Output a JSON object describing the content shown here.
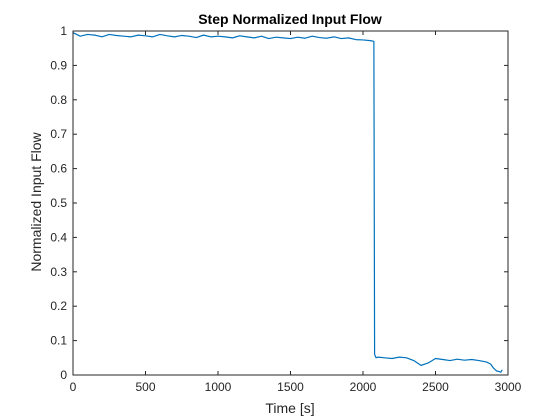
{
  "chart_data": {
    "type": "line",
    "title": "Step Normalized Input Flow",
    "xlabel": "Time [s]",
    "ylabel": "Normalized Input Flow",
    "xlim": [
      0,
      3000
    ],
    "ylim": [
      0,
      1
    ],
    "xticks": [
      0,
      500,
      1000,
      1500,
      2000,
      2500,
      3000
    ],
    "yticks": [
      0,
      0.1,
      0.2,
      0.3,
      0.4,
      0.5,
      0.6,
      0.7,
      0.8,
      0.9,
      1
    ],
    "xtick_labels": [
      "0",
      "500",
      "1000",
      "1500",
      "2000",
      "2500",
      "3000"
    ],
    "ytick_labels": [
      "0",
      "0.1",
      "0.2",
      "0.3",
      "0.4",
      "0.5",
      "0.6",
      "0.7",
      "0.8",
      "0.9",
      "1"
    ],
    "grid": false,
    "box": true,
    "series": [
      {
        "color": "#0072BD",
        "x": [
          0,
          50,
          100,
          150,
          200,
          250,
          300,
          350,
          400,
          450,
          500,
          550,
          600,
          650,
          700,
          750,
          800,
          850,
          900,
          950,
          1000,
          1050,
          1100,
          1150,
          1200,
          1250,
          1300,
          1350,
          1400,
          1450,
          1500,
          1550,
          1600,
          1650,
          1700,
          1750,
          1800,
          1850,
          1900,
          1950,
          2000,
          2050,
          2075,
          2080,
          2090,
          2100,
          2150,
          2200,
          2250,
          2300,
          2350,
          2400,
          2450,
          2500,
          2550,
          2600,
          2650,
          2700,
          2750,
          2800,
          2850,
          2880,
          2900,
          2920,
          2940,
          2950,
          2960
        ],
        "y": [
          0.995,
          0.985,
          0.99,
          0.988,
          0.983,
          0.99,
          0.987,
          0.985,
          0.983,
          0.988,
          0.986,
          0.983,
          0.99,
          0.986,
          0.983,
          0.987,
          0.985,
          0.981,
          0.988,
          0.983,
          0.985,
          0.983,
          0.98,
          0.986,
          0.983,
          0.98,
          0.985,
          0.978,
          0.982,
          0.98,
          0.978,
          0.982,
          0.979,
          0.985,
          0.981,
          0.979,
          0.983,
          0.978,
          0.98,
          0.975,
          0.974,
          0.972,
          0.97,
          0.06,
          0.05,
          0.052,
          0.05,
          0.048,
          0.052,
          0.05,
          0.042,
          0.028,
          0.035,
          0.048,
          0.045,
          0.042,
          0.046,
          0.043,
          0.045,
          0.042,
          0.038,
          0.032,
          0.02,
          0.012,
          0.01,
          0.008,
          0.015
        ]
      }
    ]
  }
}
